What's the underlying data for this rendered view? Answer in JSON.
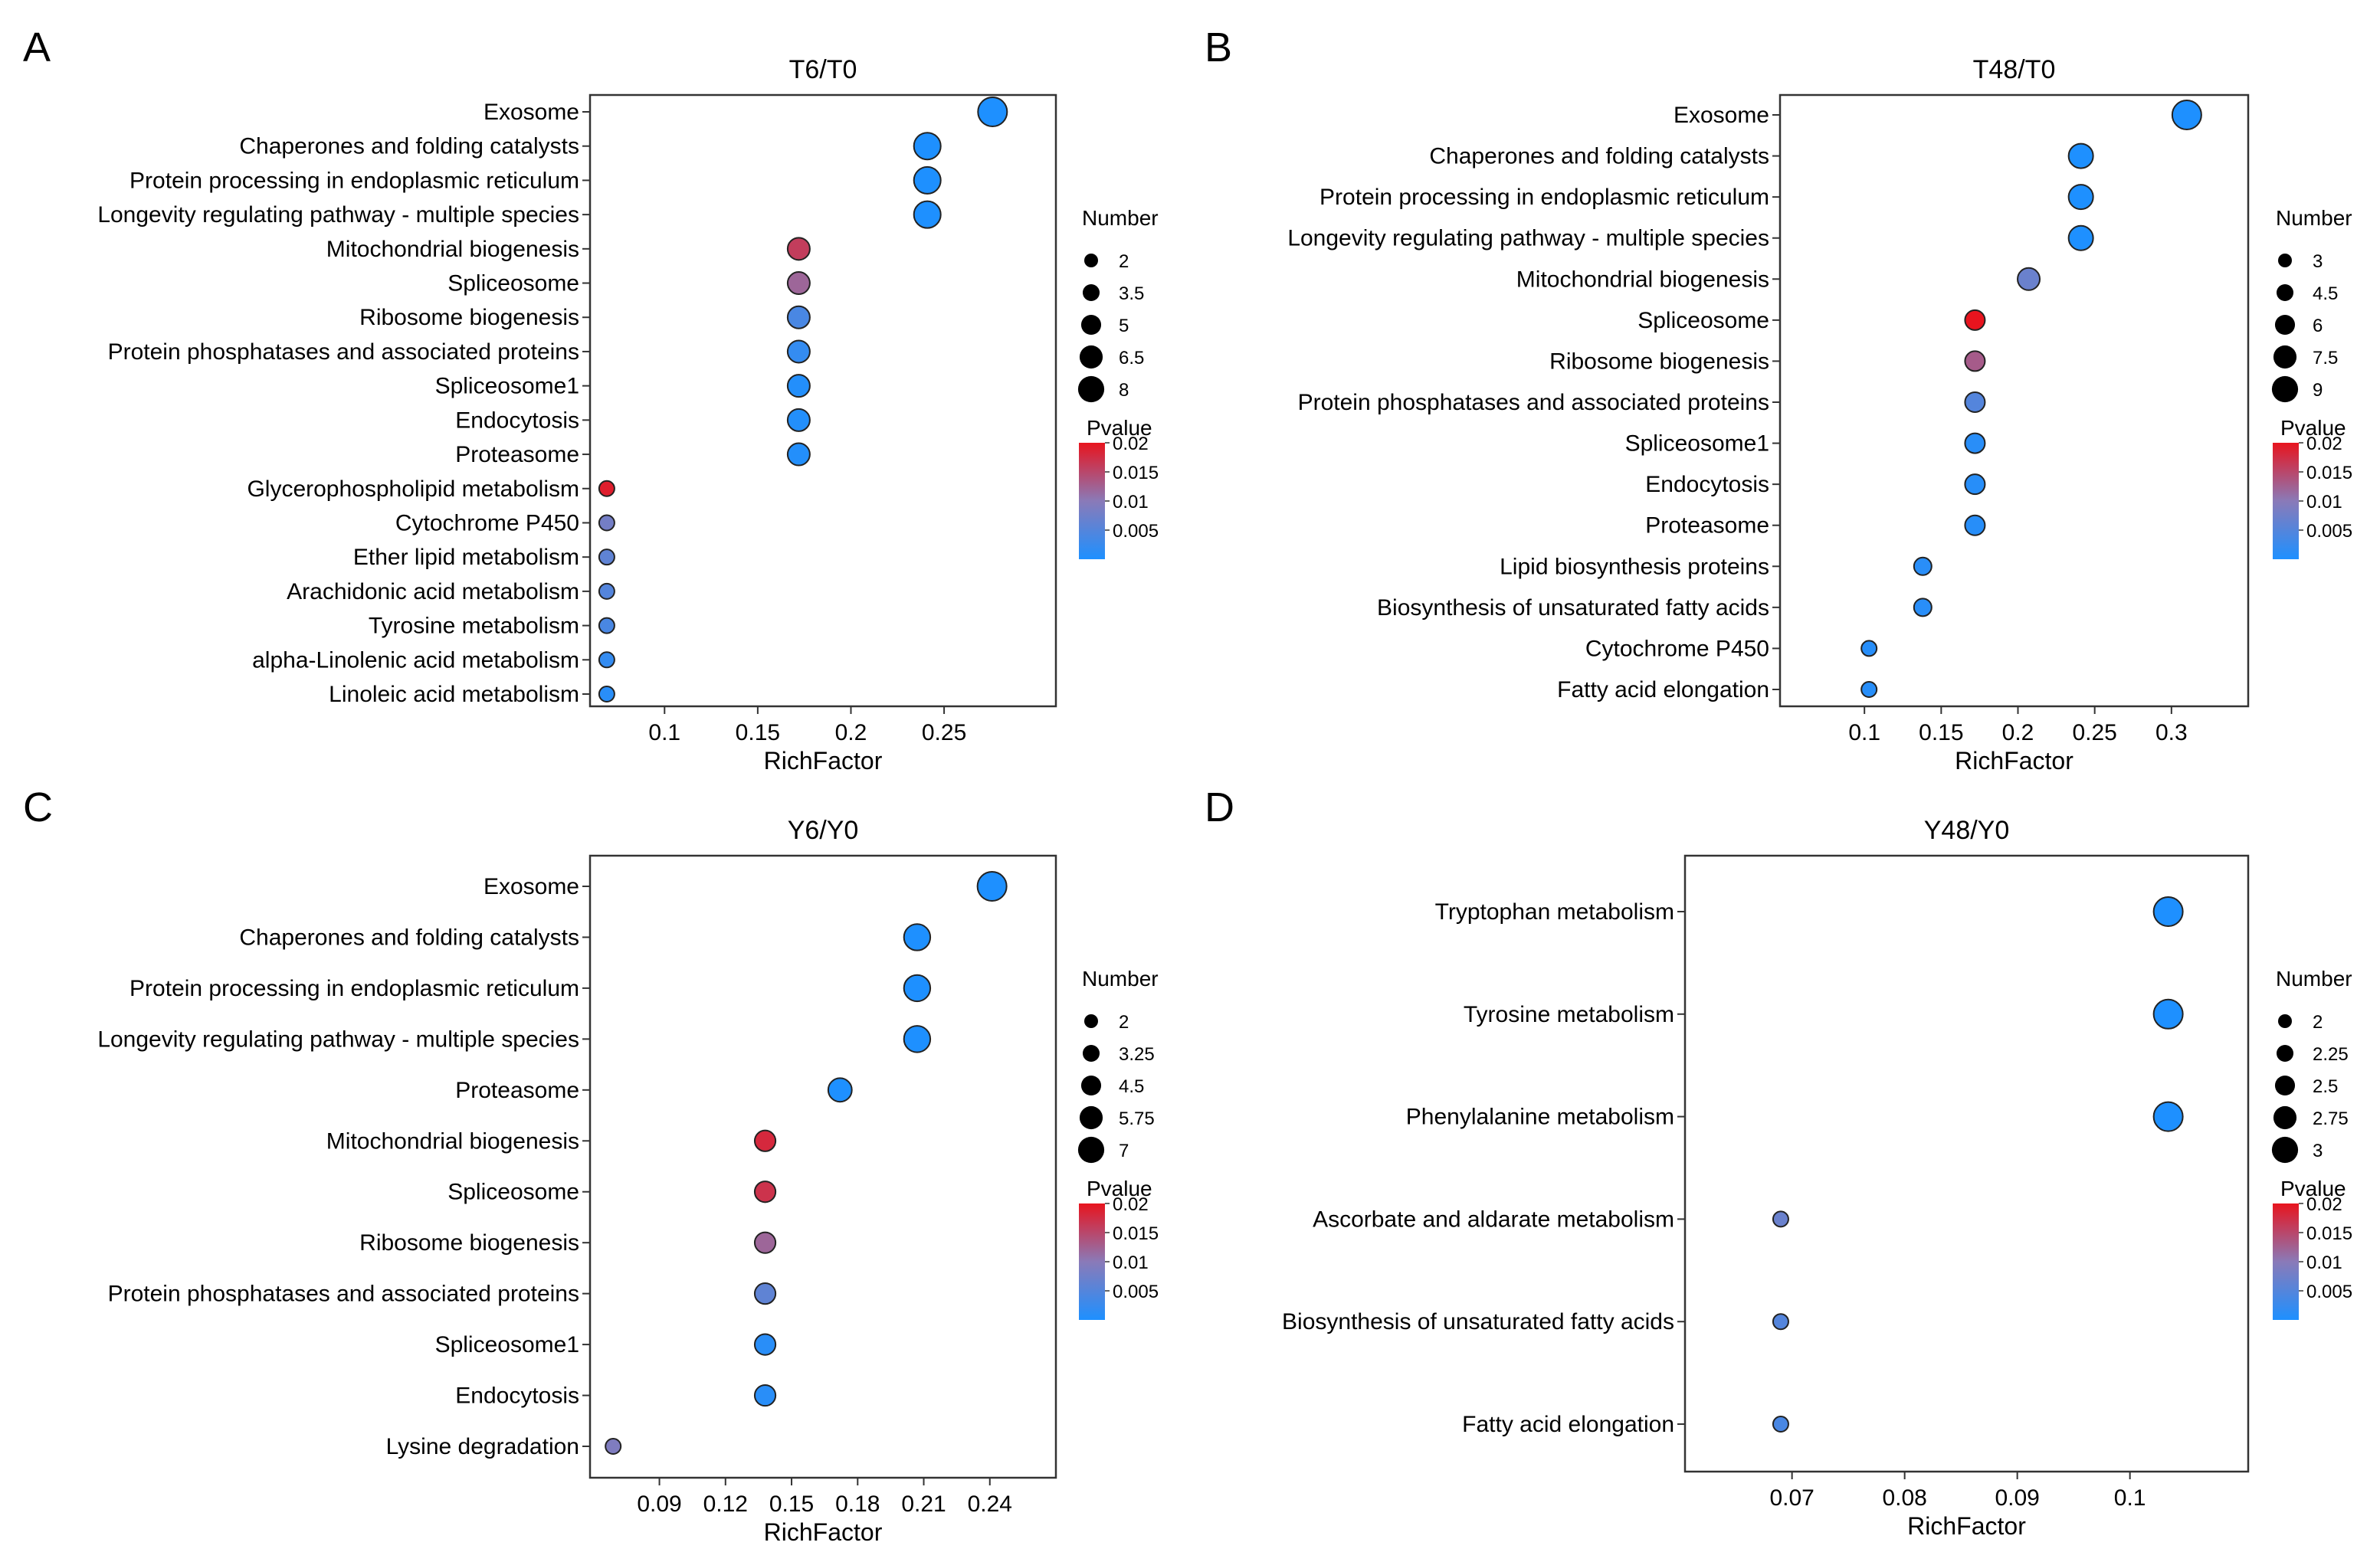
{
  "figure": {
    "pvalue_gradient": {
      "low": "#1E90FF",
      "mid": "#8A7AB8",
      "high": "#E8141E"
    }
  },
  "chart_data": [
    {
      "panel_letter": "A",
      "type": "scatter",
      "title": "T6/T0",
      "xlabel": "RichFactor",
      "ylabel": "",
      "xlim": [
        0.06,
        0.31
      ],
      "xticks": [
        "0.1",
        "0.15",
        "0.2",
        "0.25"
      ],
      "xtick_values": [
        0.1,
        0.15,
        0.2,
        0.25
      ],
      "categories": [
        "Exosome",
        "Chaperones and folding catalysts",
        "Protein processing in endoplasmic reticulum",
        "Longevity regulating pathway - multiple species",
        "Mitochondrial biogenesis",
        "Spliceosome",
        "Ribosome biogenesis",
        "Protein phosphatases and associated proteins",
        "Spliceosome1",
        "Endocytosis",
        "Proteasome",
        "Glycerophospholipid metabolism",
        "Cytochrome P450",
        "Ether lipid metabolism",
        "Arachidonic acid metabolism",
        "Tyrosine metabolism",
        "alpha-Linolenic acid metabolism",
        "Linoleic acid metabolism"
      ],
      "richfactor": [
        0.276,
        0.241,
        0.241,
        0.241,
        0.172,
        0.172,
        0.172,
        0.172,
        0.172,
        0.172,
        0.172,
        0.069,
        0.069,
        0.069,
        0.069,
        0.069,
        0.069,
        0.069
      ],
      "number": [
        8,
        7,
        7,
        7,
        5,
        5,
        5,
        5,
        5,
        5,
        5,
        2,
        2,
        2,
        2,
        2,
        2,
        2
      ],
      "pvalue": [
        0.0,
        0.0,
        0.0,
        0.0,
        0.016,
        0.012,
        0.004,
        0.002,
        0.0005,
        0.0005,
        0.0005,
        0.019,
        0.008,
        0.006,
        0.005,
        0.004,
        0.002,
        0.001
      ],
      "size_legend": {
        "title": "Number",
        "labels": [
          "2",
          "3.5",
          "5",
          "6.5",
          "8"
        ],
        "values": [
          2,
          3.5,
          5,
          6.5,
          8
        ]
      },
      "color_legend": {
        "title": "Pvalue",
        "labels": [
          "0.02",
          "0.015",
          "0.01",
          "0.005"
        ],
        "values": [
          0.02,
          0.015,
          0.01,
          0.005
        ],
        "range": [
          0,
          0.02
        ]
      }
    },
    {
      "panel_letter": "B",
      "type": "scatter",
      "title": "T48/T0",
      "xlabel": "RichFactor",
      "ylabel": "",
      "xlim": [
        0.045,
        0.35
      ],
      "xticks": [
        "0.1",
        "0.15",
        "0.2",
        "0.25",
        "0.3"
      ],
      "xtick_values": [
        0.1,
        0.15,
        0.2,
        0.25,
        0.3
      ],
      "categories": [
        "Exosome",
        "Chaperones and folding catalysts",
        "Protein processing in endoplasmic reticulum",
        "Longevity regulating pathway - multiple species",
        "Mitochondrial biogenesis",
        "Spliceosome",
        "Ribosome biogenesis",
        "Protein phosphatases and associated proteins",
        "Spliceosome1",
        "Endocytosis",
        "Proteasome",
        "Lipid biosynthesis proteins",
        "Biosynthesis of unsaturated fatty acids",
        "Cytochrome P450",
        "Fatty acid elongation"
      ],
      "richfactor": [
        0.31,
        0.241,
        0.241,
        0.241,
        0.207,
        0.172,
        0.172,
        0.172,
        0.172,
        0.172,
        0.172,
        0.138,
        0.138,
        0.103,
        0.103
      ],
      "number": [
        9,
        7,
        7,
        7,
        6,
        5,
        5,
        5,
        5,
        5,
        5,
        4,
        4,
        3,
        3
      ],
      "pvalue": [
        0.0,
        0.0,
        0.0,
        0.0,
        0.007,
        0.02,
        0.013,
        0.005,
        0.001,
        0.0008,
        0.0008,
        0.001,
        0.001,
        0.0008,
        0.0008
      ],
      "size_legend": {
        "title": "Number",
        "labels": [
          "3",
          "4.5",
          "6",
          "7.5",
          "9"
        ],
        "values": [
          3,
          4.5,
          6,
          7.5,
          9
        ]
      },
      "color_legend": {
        "title": "Pvalue",
        "labels": [
          "0.02",
          "0.015",
          "0.01",
          "0.005"
        ],
        "values": [
          0.02,
          0.015,
          0.01,
          0.005
        ],
        "range": [
          0,
          0.02
        ]
      }
    },
    {
      "panel_letter": "C",
      "type": "scatter",
      "title": "Y6/Y0",
      "xlabel": "RichFactor",
      "ylabel": "",
      "xlim": [
        0.0585,
        0.27
      ],
      "xticks": [
        "0.09",
        "0.12",
        "0.15",
        "0.18",
        "0.21",
        "0.24"
      ],
      "xtick_values": [
        0.09,
        0.12,
        0.15,
        0.18,
        0.21,
        0.24
      ],
      "categories": [
        "Exosome",
        "Chaperones and folding catalysts",
        "Protein processing in endoplasmic reticulum",
        "Longevity regulating pathway - multiple species",
        "Proteasome",
        "Mitochondrial biogenesis",
        "Spliceosome",
        "Ribosome biogenesis",
        "Protein phosphatases and associated proteins",
        "Spliceosome1",
        "Endocytosis",
        "Lysine degradation"
      ],
      "richfactor": [
        0.241,
        0.207,
        0.207,
        0.207,
        0.172,
        0.138,
        0.138,
        0.138,
        0.138,
        0.138,
        0.138,
        0.069
      ],
      "number": [
        7,
        6,
        6,
        6,
        5,
        4,
        4,
        4,
        4,
        4,
        4,
        2
      ],
      "pvalue": [
        0.0,
        0.0,
        0.0,
        0.0,
        0.0,
        0.018,
        0.017,
        0.012,
        0.006,
        0.001,
        0.001,
        0.009
      ],
      "size_legend": {
        "title": "Number",
        "labels": [
          "2",
          "3.25",
          "4.5",
          "5.75",
          "7"
        ],
        "values": [
          2,
          3.25,
          4.5,
          5.75,
          7
        ]
      },
      "color_legend": {
        "title": "Pvalue",
        "labels": [
          "0.02",
          "0.015",
          "0.01",
          "0.005"
        ],
        "values": [
          0.02,
          0.015,
          0.01,
          0.005
        ],
        "range": [
          0,
          0.02
        ]
      }
    },
    {
      "panel_letter": "D",
      "type": "scatter",
      "title": "Y48/Y0",
      "xlabel": "RichFactor",
      "ylabel": "",
      "xlim": [
        0.0605,
        0.1105
      ],
      "xticks": [
        "0.07",
        "0.08",
        "0.09",
        "0.1"
      ],
      "xtick_values": [
        0.07,
        0.08,
        0.09,
        0.1
      ],
      "categories": [
        "Tryptophan metabolism",
        "Tyrosine metabolism",
        "Phenylalanine metabolism",
        "Ascorbate and aldarate metabolism",
        "Biosynthesis of unsaturated fatty acids",
        "Fatty acid elongation"
      ],
      "richfactor": [
        0.1034,
        0.1034,
        0.1034,
        0.069,
        0.069,
        0.069
      ],
      "number": [
        3,
        3,
        3,
        2,
        2,
        2
      ],
      "pvalue": [
        0.0,
        0.0,
        0.0,
        0.007,
        0.005,
        0.004
      ],
      "size_legend": {
        "title": "Number",
        "labels": [
          "2",
          "2.25",
          "2.5",
          "2.75",
          "3"
        ],
        "values": [
          2,
          2.25,
          2.5,
          2.75,
          3
        ]
      },
      "color_legend": {
        "title": "Pvalue",
        "labels": [
          "0.02",
          "0.015",
          "0.01",
          "0.005"
        ],
        "values": [
          0.02,
          0.015,
          0.01,
          0.005
        ],
        "range": [
          0,
          0.02
        ]
      }
    }
  ]
}
